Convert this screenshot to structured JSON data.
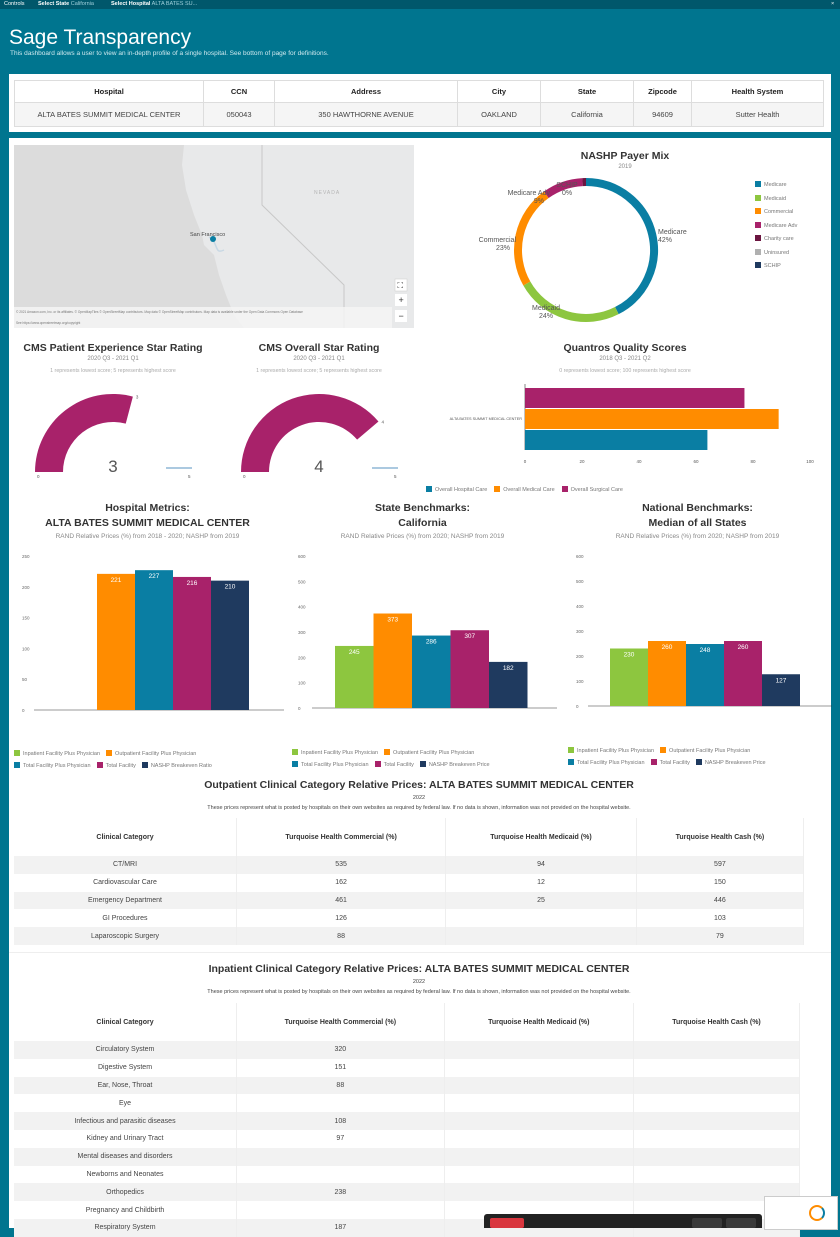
{
  "controls": {
    "label": "Controls",
    "state_label": "Select State",
    "state_value": "California",
    "hospital_label": "Select Hospital",
    "hospital_value": "ALTA BATES SU..."
  },
  "header": {
    "title": "Sage Transparency",
    "subtitle": "This dashboard allows a user to view an in-depth profile of a single hospital. See bottom of page for definitions."
  },
  "info_table": {
    "headers": [
      "Hospital",
      "CCN",
      "Address",
      "City",
      "State",
      "Zipcode",
      "Health System"
    ],
    "row": [
      "ALTA BATES SUMMIT MEDICAL CENTER",
      "050043",
      "350 HAWTHORNE AVENUE",
      "OAKLAND",
      "California",
      "94609",
      "Sutter Health"
    ]
  },
  "map": {
    "place_label": "San Francisco",
    "region_label": "NEVADA",
    "attribution": "© 2021 Amazon.com, Inc. or its affiliates. © OpenMapTiles © OpenStreetMap contributors. Map data © OpenStreetMap contributors. Map data is available under the Open Data Commons Open Database",
    "attribution2": "See https://www.openstreetmap.org/copyright",
    "zoom_in": "+",
    "zoom_out": "−"
  },
  "colors": {
    "teal": "#0a7ea3",
    "orange": "#ff8c00",
    "magenta": "#a8226a",
    "green": "#8dc63f",
    "navy": "#1f3a5f",
    "maroon": "#6b1540",
    "lightgray": "#b0b0b0",
    "lightblue": "#8fb7d6"
  },
  "payer_mix": {
    "title": "NASHP Payer Mix",
    "year": "2019",
    "legend": [
      "Medicare",
      "Medicaid",
      "Commercial",
      "Medicare Adv",
      "Charity care",
      "Uninsured",
      "SCHIP"
    ],
    "chart_data": {
      "type": "pie",
      "categories": [
        "Medicare",
        "Medicaid",
        "Commercial",
        "Medicare Adv",
        "SCHIP"
      ],
      "values": [
        42,
        24,
        23,
        9,
        0
      ],
      "labels": [
        {
          "name": "Medicare",
          "pct": "42%"
        },
        {
          "name": "Medicaid",
          "pct": "24%"
        },
        {
          "name": "Commercial",
          "pct": "23%"
        },
        {
          "name": "Medicare Adv",
          "pct": "9%"
        },
        {
          "name": "SCHIP",
          "pct": "0%"
        }
      ]
    }
  },
  "patient_exp": {
    "title": "CMS Patient Experience Star Rating",
    "period": "2020 Q3 - 2021 Q1",
    "note": "1 represents lowest score; 5 represents highest score",
    "value": "3",
    "max_label": "5",
    "min_label": "0",
    "chart_data": {
      "type": "gauge",
      "value": 3,
      "min": 0,
      "max": 5
    }
  },
  "overall_star": {
    "title": "CMS Overall Star Rating",
    "period": "2020 Q3 - 2021 Q1",
    "note": "1 represents lowest score; 5 represents highest score",
    "value": "4",
    "max_label": "5",
    "min_label": "0",
    "chart_data": {
      "type": "gauge",
      "value": 4,
      "min": 0,
      "max": 5
    }
  },
  "quantros": {
    "title": "Quantros Quality Scores",
    "period": "2018 Q3 - 2021 Q2",
    "note": "0 represents lowest score; 100 represents highest score",
    "legend": [
      "Overall Hospital Care",
      "Overall Medical Care",
      "Overall Surgical Care"
    ],
    "chart_data": {
      "type": "bar",
      "orientation": "horizontal",
      "categories": [
        "ALTA BATES SUMMIT MEDICAL CENTER"
      ],
      "series": [
        {
          "name": "Overall Surgical Care",
          "values": [
            77
          ]
        },
        {
          "name": "Overall Medical Care",
          "values": [
            89
          ]
        },
        {
          "name": "Overall Hospital Care",
          "values": [
            64
          ]
        }
      ],
      "xlim": [
        0,
        100
      ],
      "xticks": [
        "0",
        "20",
        "40",
        "60",
        "80",
        "100"
      ]
    }
  },
  "hospital_metrics": {
    "title1": "Hospital Metrics:",
    "title2": "ALTA BATES SUMMIT MEDICAL CENTER",
    "sub": "RAND Relative Prices (%) from 2018 - 2020; NASHP from 2019",
    "chart_data": {
      "type": "bar",
      "series": [
        {
          "name": "Outpatient Facility Plus Physician",
          "values": [
            221
          ]
        },
        {
          "name": "Total Facility Plus Physician",
          "values": [
            227
          ]
        },
        {
          "name": "Total Facility",
          "values": [
            216
          ]
        },
        {
          "name": "NASHP Breakeven Ratio",
          "values": [
            210
          ]
        }
      ],
      "ylim": [
        0,
        250
      ],
      "yticks": [
        "0",
        "50",
        "100",
        "150",
        "200",
        "250"
      ]
    }
  },
  "state_bench": {
    "title1": "State Benchmarks:",
    "title2": "California",
    "sub": "RAND Relative Prices (%) from 2020; NASHP from 2019",
    "chart_data": {
      "type": "bar",
      "series": [
        {
          "name": "Inpatient Facility Plus Physician",
          "values": [
            245
          ]
        },
        {
          "name": "Outpatient Facility Plus Physician",
          "values": [
            373
          ]
        },
        {
          "name": "Total Facility Plus Physician",
          "values": [
            286
          ]
        },
        {
          "name": "Total Facility",
          "values": [
            307
          ]
        },
        {
          "name": "NASHP Breakeven Price",
          "values": [
            182
          ]
        }
      ],
      "ylim": [
        0,
        600
      ],
      "yticks": [
        "0",
        "100",
        "200",
        "300",
        "400",
        "500",
        "600"
      ]
    }
  },
  "national_bench": {
    "title1": "National Benchmarks:",
    "title2": "Median of all States",
    "sub": "RAND Relative Prices (%) from 2020; NASHP from 2019",
    "chart_data": {
      "type": "bar",
      "series": [
        {
          "name": "Inpatient Facility Plus Physician",
          "values": [
            230
          ]
        },
        {
          "name": "Outpatient Facility Plus Physician",
          "values": [
            260
          ]
        },
        {
          "name": "Total Facility Plus Physician",
          "values": [
            248
          ]
        },
        {
          "name": "Total Facility",
          "values": [
            260
          ]
        },
        {
          "name": "NASHP Breakeven Price",
          "values": [
            127
          ]
        }
      ],
      "ylim": [
        0,
        600
      ],
      "yticks": [
        "0",
        "100",
        "200",
        "300",
        "400",
        "500",
        "600"
      ]
    }
  },
  "bench_legend_hosp": [
    [
      "Inpatient Facility Plus Physician",
      "Outpatient Facility Plus Physician"
    ],
    [
      "Total Facility Plus Physician",
      "Total Facility",
      "NASHP Breakeven Ratio"
    ]
  ],
  "bench_legend_other": [
    [
      "Inpatient Facility Plus Physician",
      "Outpatient Facility Plus Physician"
    ],
    [
      "Total Facility Plus Physician",
      "Total Facility",
      "NASHP Breakeven Price"
    ]
  ],
  "outpatient": {
    "title": "Outpatient Clinical Category Relative Prices: ALTA BATES SUMMIT MEDICAL CENTER",
    "year": "2022",
    "note": "These prices represent what is posted by hospitals on their own websites as required by federal law. If no data is shown, information was not provided on the hospital website.",
    "headers": [
      "Clinical Category",
      "Turquoise Health Commercial (%)",
      "Turquoise Health Medicaid (%)",
      "Turquoise Health Cash (%)"
    ],
    "rows": [
      [
        "CT/MRI",
        "535",
        "94",
        "597"
      ],
      [
        "Cardiovascular Care",
        "162",
        "12",
        "150"
      ],
      [
        "Emergency Department",
        "461",
        "25",
        "446"
      ],
      [
        "GI Procedures",
        "126",
        "",
        "103"
      ],
      [
        "Laparoscopic Surgery",
        "88",
        "",
        "79"
      ]
    ]
  },
  "inpatient": {
    "title": "Inpatient Clinical Category Relative Prices: ALTA BATES SUMMIT MEDICAL CENTER",
    "year": "2022",
    "note": "These prices represent what is posted by hospitals on their own websites as required by federal law. If no data is shown, information was not provided on the hospital website.",
    "headers": [
      "Clinical Category",
      "Turquoise Health Commercial (%)",
      "Turquoise Health Medicaid (%)",
      "Turquoise Health Cash (%)"
    ],
    "rows": [
      [
        "Circulatory System",
        "320",
        "",
        ""
      ],
      [
        "Digestive System",
        "151",
        "",
        ""
      ],
      [
        "Ear, Nose, Throat",
        "88",
        "",
        ""
      ],
      [
        "Eye",
        "",
        "",
        ""
      ],
      [
        "Infectious and parasitic diseases",
        "108",
        "",
        ""
      ],
      [
        "Kidney and Urinary Tract",
        "97",
        "",
        ""
      ],
      [
        "Mental diseases and disorders",
        "",
        "",
        ""
      ],
      [
        "Newborns and Neonates",
        "",
        "",
        ""
      ],
      [
        "Orthopedics",
        "238",
        "",
        ""
      ],
      [
        "Pregnancy and Childbirth",
        "",
        "",
        ""
      ],
      [
        "Respiratory System",
        "187",
        "",
        ""
      ]
    ]
  }
}
